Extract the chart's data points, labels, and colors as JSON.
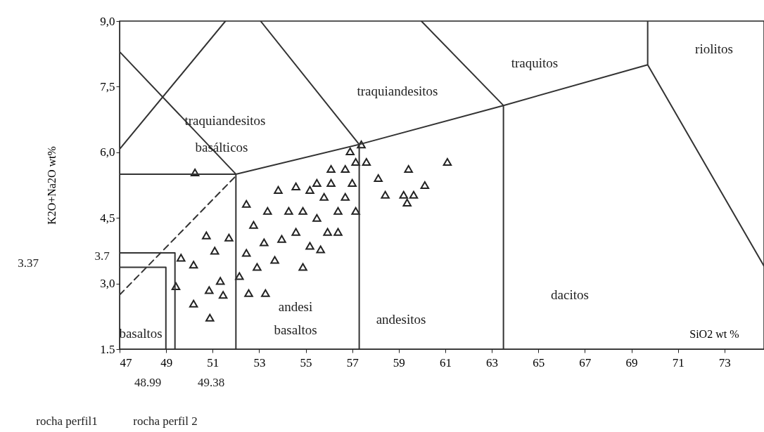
{
  "chart_data": {
    "type": "scatter",
    "xlabel": "SiO2 wt %",
    "ylabel": "K2O+Na2O wt%",
    "xlim": [
      47,
      74.7
    ],
    "ylim": [
      1.5,
      9.0
    ],
    "xticks": [
      47,
      49,
      51,
      53,
      55,
      57,
      59,
      61,
      63,
      65,
      67,
      69,
      71,
      73
    ],
    "yticks": [
      {
        "value": 1.5,
        "label": "1.5"
      },
      {
        "value": 3.0,
        "label": "3,0"
      },
      {
        "value": 4.5,
        "label": "4,5"
      },
      {
        "value": 6.0,
        "label": "6,0"
      },
      {
        "value": 7.5,
        "label": "7,5"
      },
      {
        "value": 9.0,
        "label": "9,0"
      }
    ],
    "grid": false,
    "series": [
      {
        "color": "#222222",
        "marker": "triangle",
        "x": [
          52.45,
          52.76,
          52.45,
          52.91,
          53.36,
          53.82,
          54.27,
          53.97,
          53.67,
          54.58,
          54.88,
          55.18,
          55.18,
          55.48,
          55.79,
          56.09,
          55.94,
          56.39,
          56.7,
          57.0,
          57.15,
          56.7,
          57.15,
          55.48,
          56.09,
          54.58,
          53.21,
          54.88,
          55.64,
          56.39,
          57.61,
          58.12,
          58.42,
          59.42,
          59.21,
          59.64,
          59.36,
          60.12,
          61.09,
          56.91,
          57.39,
          50.24,
          50.73,
          51.7,
          49.64,
          50.18,
          51.09,
          49.42,
          50.18,
          50.88,
          50.85,
          51.45,
          52.55,
          53.27,
          52.15,
          51.33
        ],
        "values": [
          4.82,
          4.34,
          3.7,
          3.38,
          4.66,
          5.14,
          4.66,
          4.02,
          3.54,
          4.18,
          4.66,
          5.14,
          3.86,
          4.5,
          4.98,
          5.3,
          4.18,
          4.66,
          4.98,
          5.3,
          4.66,
          5.62,
          5.78,
          5.3,
          5.62,
          5.22,
          3.94,
          3.38,
          3.78,
          4.18,
          5.78,
          5.41,
          5.03,
          5.62,
          5.03,
          5.03,
          4.85,
          5.25,
          5.78,
          6.02,
          6.18,
          5.54,
          4.1,
          4.05,
          3.59,
          3.43,
          3.75,
          2.94,
          2.54,
          2.22,
          2.85,
          2.74,
          2.78,
          2.78,
          3.17,
          3.06
        ]
      },
      {
        "type": "line",
        "color": "#333333",
        "x": [
          52,
          52,
          47,
          null,
          52,
          57.3,
          63.5,
          69.7,
          74.7,
          null,
          57.3,
          57.3,
          null,
          63.5,
          63.5,
          null,
          69.7,
          69.7,
          null,
          47,
          52,
          null,
          47,
          51.55,
          null,
          53.06,
          57.3,
          null,
          59.97,
          63.5,
          null,
          47,
          48.99,
          48.99,
          null,
          47,
          49.38,
          49.38
        ],
        "values": [
          1.5,
          5.5,
          5.5,
          null,
          5.5,
          6.18,
          7.07,
          8.0,
          3.4,
          null,
          1.5,
          6.18,
          null,
          1.5,
          7.07,
          null,
          8.0,
          9.0,
          null,
          8.3,
          5.5,
          null,
          6.07,
          9.0,
          null,
          9.0,
          6.18,
          null,
          9.0,
          7.07,
          null,
          3.37,
          3.37,
          1.5,
          null,
          3.7,
          3.7,
          1.5
        ]
      },
      {
        "type": "line",
        "color": "#333333",
        "line_style": "dashed",
        "x": [
          47,
          52
        ],
        "values": [
          2.74,
          5.46
        ]
      }
    ],
    "annotations": [
      "traquiandesitos",
      "basálticos",
      "traquiandesitos",
      "traquitos",
      "riolitos",
      "basaltos",
      "andesi",
      "basaltos",
      "andesitos",
      "dacitos",
      "3.7",
      "3.37",
      "48.99",
      "rocha perfil1",
      "49.38",
      "rocha perfil 2"
    ]
  }
}
